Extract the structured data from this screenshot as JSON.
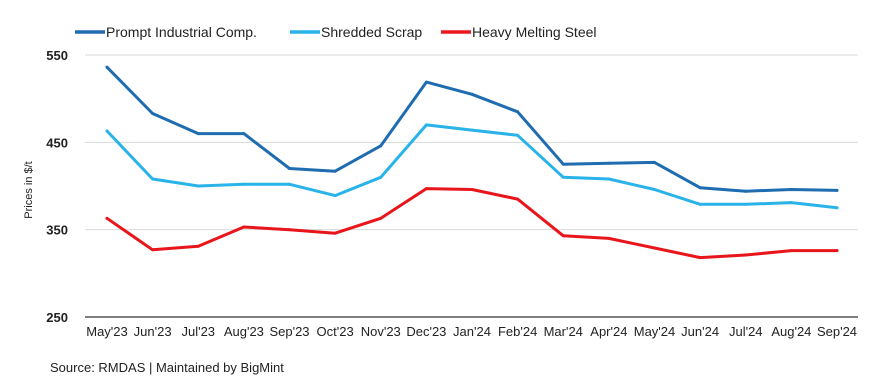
{
  "chart_data": {
    "type": "line",
    "categories": [
      "May'23",
      "Jun'23",
      "Jul'23",
      "Aug'23",
      "Sep'23",
      "Oct'23",
      "Nov'23",
      "Dec'23",
      "Jan'24",
      "Feb'24",
      "Mar'24",
      "Apr'24",
      "May'24",
      "Jun'24",
      "Jul'24",
      "Aug'24",
      "Sep'24"
    ],
    "series": [
      {
        "name": "Prompt Industrial Comp.",
        "color": "#1f6cb0",
        "values": [
          536,
          483,
          460,
          460,
          420,
          417,
          446,
          519,
          505,
          485,
          425,
          426,
          427,
          398,
          394,
          396,
          395
        ]
      },
      {
        "name": "Shredded Scrap",
        "color": "#29b3e8",
        "values": [
          463,
          408,
          400,
          402,
          402,
          389,
          410,
          470,
          464,
          458,
          410,
          408,
          396,
          379,
          379,
          381,
          375
        ]
      },
      {
        "name": "Heavy Melting Steel",
        "color": "#e8161b",
        "values": [
          363,
          327,
          331,
          353,
          350,
          346,
          363,
          397,
          396,
          385,
          343,
          340,
          329,
          318,
          321,
          326,
          326
        ]
      }
    ],
    "xlabel": "",
    "ylabel": "Prices in $/t",
    "ylim": [
      250,
      550
    ],
    "yticks": [
      250,
      350,
      450,
      550
    ],
    "grid": true,
    "legend": "top"
  },
  "source": "Source: RMDAS | Maintained by BigMint"
}
